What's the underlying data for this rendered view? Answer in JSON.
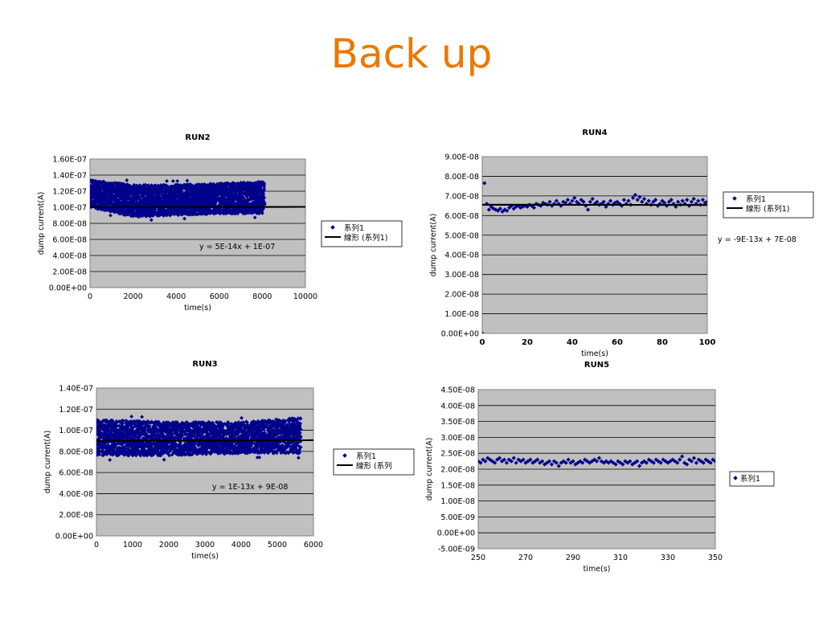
{
  "slide": {
    "title": "Back up"
  },
  "chart_data": [
    {
      "id": "run2",
      "type": "scatter",
      "title": "RUN2",
      "xlabel": "time(s)",
      "ylabel": "dump current(A)",
      "xlim": [
        0,
        10000
      ],
      "ylim": [
        0,
        1.6e-07
      ],
      "xticks": [
        "0",
        "2000",
        "4000",
        "6000",
        "8000",
        "10000"
      ],
      "yticks": [
        "0.00E+00",
        "2.00E-08",
        "4.00E-08",
        "6.00E-08",
        "8.00E-08",
        "1.00E-07",
        "1.20E-07",
        "1.40E-07",
        "1.60E-07"
      ],
      "series": [
        {
          "name": "系列1",
          "color": "#00008b",
          "marker": "diamond",
          "x_range": [
            0,
            8100
          ],
          "y_band": [
            [
              0,
              1e-07,
              1.34e-07
            ],
            [
              2000,
              8.8e-08,
              1.28e-07
            ],
            [
              4000,
              9e-08,
              1.28e-07
            ],
            [
              6000,
              9.2e-08,
              1.3e-07
            ],
            [
              8100,
              9.2e-08,
              1.32e-07
            ]
          ],
          "points_estimated": 3000
        },
        {
          "name": "線形 (系列1)",
          "type": "trendline",
          "color": "#000000",
          "slope": 5e-14,
          "intercept": 1e-07
        }
      ],
      "equation": "y = 5E-14x + 1E-07",
      "legend_labels": [
        "系列1",
        "線形 (系列1)"
      ]
    },
    {
      "id": "run4",
      "type": "scatter",
      "title": "RUN4",
      "xlabel": "time(s)",
      "ylabel": "dump current(A)",
      "xlim": [
        0,
        100
      ],
      "ylim": [
        0,
        9e-08
      ],
      "xticks": [
        "0",
        "20",
        "40",
        "60",
        "80",
        "100"
      ],
      "yticks": [
        "0.00E+00",
        "1.00E-08",
        "2.00E-08",
        "3.00E-08",
        "4.00E-08",
        "5.00E-08",
        "6.00E-08",
        "7.00E-08",
        "8.00E-08",
        "9.00E-08"
      ],
      "series": [
        {
          "name": "系列1",
          "color": "#00008b",
          "marker": "diamond",
          "points": [
            [
              0,
              0
            ],
            [
              1,
              7.65e-08
            ],
            [
              2,
              6.6e-08
            ],
            [
              3,
              6.3e-08
            ],
            [
              4,
              6.45e-08
            ],
            [
              5,
              6.35e-08
            ],
            [
              6,
              6.3e-08
            ],
            [
              7,
              6.25e-08
            ],
            [
              8,
              6.35e-08
            ],
            [
              9,
              6.2e-08
            ],
            [
              10,
              6.3e-08
            ],
            [
              11,
              6.25e-08
            ],
            [
              12,
              6.4e-08
            ],
            [
              13,
              6.5e-08
            ],
            [
              14,
              6.35e-08
            ],
            [
              15,
              6.45e-08
            ],
            [
              16,
              6.5e-08
            ],
            [
              17,
              6.4e-08
            ],
            [
              18,
              6.45e-08
            ],
            [
              19,
              6.5e-08
            ],
            [
              20,
              6.45e-08
            ],
            [
              21,
              6.55e-08
            ],
            [
              22,
              6.5e-08
            ],
            [
              23,
              6.4e-08
            ],
            [
              24,
              6.6e-08
            ],
            [
              25,
              6.55e-08
            ],
            [
              26,
              6.5e-08
            ],
            [
              27,
              6.65e-08
            ],
            [
              28,
              6.6e-08
            ],
            [
              29,
              6.55e-08
            ],
            [
              30,
              6.7e-08
            ],
            [
              31,
              6.5e-08
            ],
            [
              32,
              6.6e-08
            ],
            [
              33,
              6.75e-08
            ],
            [
              34,
              6.6e-08
            ],
            [
              35,
              6.5e-08
            ],
            [
              36,
              6.7e-08
            ],
            [
              37,
              6.65e-08
            ],
            [
              38,
              6.8e-08
            ],
            [
              39,
              6.6e-08
            ],
            [
              40,
              6.75e-08
            ],
            [
              41,
              6.9e-08
            ],
            [
              42,
              6.7e-08
            ],
            [
              43,
              6.6e-08
            ],
            [
              44,
              6.8e-08
            ],
            [
              45,
              6.7e-08
            ],
            [
              46,
              6.5e-08
            ],
            [
              47,
              6.3e-08
            ],
            [
              48,
              6.7e-08
            ],
            [
              49,
              6.85e-08
            ],
            [
              50,
              6.6e-08
            ],
            [
              51,
              6.7e-08
            ],
            [
              52,
              6.55e-08
            ],
            [
              53,
              6.6e-08
            ],
            [
              54,
              6.7e-08
            ],
            [
              55,
              6.45e-08
            ],
            [
              56,
              6.6e-08
            ],
            [
              57,
              6.75e-08
            ],
            [
              58,
              6.55e-08
            ],
            [
              59,
              6.65e-08
            ],
            [
              60,
              6.7e-08
            ],
            [
              61,
              6.6e-08
            ],
            [
              62,
              6.5e-08
            ],
            [
              63,
              6.8e-08
            ],
            [
              64,
              6.6e-08
            ],
            [
              65,
              6.75e-08
            ],
            [
              66,
              6.55e-08
            ],
            [
              67,
              6.9e-08
            ],
            [
              68,
              7.05e-08
            ],
            [
              69,
              6.8e-08
            ],
            [
              70,
              6.95e-08
            ],
            [
              71,
              6.7e-08
            ],
            [
              72,
              6.85e-08
            ],
            [
              73,
              6.6e-08
            ],
            [
              74,
              6.75e-08
            ],
            [
              75,
              6.55e-08
            ],
            [
              76,
              6.7e-08
            ],
            [
              77,
              6.8e-08
            ],
            [
              78,
              6.5e-08
            ],
            [
              79,
              6.6e-08
            ],
            [
              80,
              6.75e-08
            ],
            [
              81,
              6.65e-08
            ],
            [
              82,
              6.5e-08
            ],
            [
              83,
              6.7e-08
            ],
            [
              84,
              6.8e-08
            ],
            [
              85,
              6.6e-08
            ],
            [
              86,
              6.45e-08
            ],
            [
              87,
              6.7e-08
            ],
            [
              88,
              6.55e-08
            ],
            [
              89,
              6.75e-08
            ],
            [
              90,
              6.6e-08
            ],
            [
              91,
              6.8e-08
            ],
            [
              92,
              6.5e-08
            ],
            [
              93,
              6.7e-08
            ],
            [
              94,
              6.85e-08
            ],
            [
              95,
              6.6e-08
            ],
            [
              96,
              6.75e-08
            ],
            [
              97,
              6.55e-08
            ],
            [
              98,
              6.8e-08
            ],
            [
              99,
              6.65e-08
            ],
            [
              100,
              6.7e-08
            ]
          ]
        },
        {
          "name": "線形 (系列1)",
          "type": "trendline",
          "color": "#000000",
          "slope": -9e-13,
          "intercept": 6.55e-08
        }
      ],
      "equation": "y = -9E-13x + 7E-08",
      "legend_labels": [
        "系列1",
        "線形 (系列1)"
      ]
    },
    {
      "id": "run3",
      "type": "scatter",
      "title": "RUN3",
      "xlabel": "time(s)",
      "ylabel": "dump current(A)",
      "xlim": [
        0,
        6000
      ],
      "ylim": [
        0,
        1.4e-07
      ],
      "xticks": [
        "0",
        "1000",
        "2000",
        "3000",
        "4000",
        "5000",
        "6000"
      ],
      "yticks": [
        "0.00E+00",
        "2.00E-08",
        "4.00E-08",
        "6.00E-08",
        "8.00E-08",
        "1.00E-07",
        "1.20E-07",
        "1.40E-07"
      ],
      "series": [
        {
          "name": "系列1",
          "color": "#00008b",
          "marker": "diamond",
          "x_range": [
            0,
            5650
          ],
          "y_band": [
            [
              0,
              7.6e-08,
              1.1e-07
            ],
            [
              2000,
              7.6e-08,
              1.08e-07
            ],
            [
              4000,
              7.8e-08,
              1.08e-07
            ],
            [
              5650,
              7.8e-08,
              1.12e-07
            ]
          ],
          "points_estimated": 2800
        },
        {
          "name": "線形 (系列1)",
          "type": "trendline",
          "color": "#000000",
          "slope": 1e-13,
          "intercept": 9e-08
        }
      ],
      "equation": "y = 1E-13x + 9E-08",
      "legend_labels": [
        "系列1",
        "線形 (系列"
      ]
    },
    {
      "id": "run5",
      "type": "scatter",
      "title": "RUN5",
      "xlabel": "time(s)",
      "ylabel": "dump current(A)",
      "xlim": [
        250,
        350
      ],
      "ylim": [
        -5e-09,
        4.5e-08
      ],
      "xticks": [
        "250",
        "270",
        "290",
        "310",
        "330",
        "350"
      ],
      "yticks": [
        "-5.00E-09",
        "0.00E+00",
        "5.00E-09",
        "1.00E-08",
        "1.50E-08",
        "2.00E-08",
        "2.50E-08",
        "3.00E-08",
        "3.50E-08",
        "4.00E-08",
        "4.50E-08"
      ],
      "series": [
        {
          "name": "系列1",
          "color": "#00008b",
          "marker": "diamond",
          "points": [
            [
              250,
              2.25e-08
            ],
            [
              251,
              2.2e-08
            ],
            [
              252,
              2.3e-08
            ],
            [
              253,
              2.25e-08
            ],
            [
              254,
              2.35e-08
            ],
            [
              255,
              2.3e-08
            ],
            [
              256,
              2.25e-08
            ],
            [
              257,
              2.2e-08
            ],
            [
              258,
              2.3e-08
            ],
            [
              259,
              2.35e-08
            ],
            [
              260,
              2.25e-08
            ],
            [
              261,
              2.3e-08
            ],
            [
              262,
              2.2e-08
            ],
            [
              263,
              2.3e-08
            ],
            [
              264,
              2.25e-08
            ],
            [
              265,
              2.35e-08
            ],
            [
              266,
              2.2e-08
            ],
            [
              267,
              2.3e-08
            ],
            [
              268,
              2.25e-08
            ],
            [
              269,
              2.3e-08
            ],
            [
              270,
              2.2e-08
            ],
            [
              271,
              2.25e-08
            ],
            [
              272,
              2.3e-08
            ],
            [
              273,
              2.2e-08
            ],
            [
              274,
              2.25e-08
            ],
            [
              275,
              2.3e-08
            ],
            [
              276,
              2.2e-08
            ],
            [
              277,
              2.25e-08
            ],
            [
              278,
              2.15e-08
            ],
            [
              279,
              2.2e-08
            ],
            [
              280,
              2.25e-08
            ],
            [
              281,
              2.15e-08
            ],
            [
              282,
              2.25e-08
            ],
            [
              283,
              2.2e-08
            ],
            [
              284,
              2.1e-08
            ],
            [
              285,
              2.2e-08
            ],
            [
              286,
              2.25e-08
            ],
            [
              287,
              2.2e-08
            ],
            [
              288,
              2.3e-08
            ],
            [
              289,
              2.2e-08
            ],
            [
              290,
              2.25e-08
            ],
            [
              291,
              2.15e-08
            ],
            [
              292,
              2.2e-08
            ],
            [
              293,
              2.25e-08
            ],
            [
              294,
              2.2e-08
            ],
            [
              295,
              2.3e-08
            ],
            [
              296,
              2.25e-08
            ],
            [
              297,
              2.2e-08
            ],
            [
              298,
              2.25e-08
            ],
            [
              299,
              2.3e-08
            ],
            [
              300,
              2.25e-08
            ],
            [
              301,
              2.35e-08
            ],
            [
              302,
              2.25e-08
            ],
            [
              303,
              2.2e-08
            ],
            [
              304,
              2.25e-08
            ],
            [
              305,
              2.2e-08
            ],
            [
              306,
              2.25e-08
            ],
            [
              307,
              2.2e-08
            ],
            [
              308,
              2.15e-08
            ],
            [
              309,
              2.25e-08
            ],
            [
              310,
              2.2e-08
            ],
            [
              311,
              2.15e-08
            ],
            [
              312,
              2.25e-08
            ],
            [
              313,
              2.2e-08
            ],
            [
              314,
              2.25e-08
            ],
            [
              315,
              2.15e-08
            ],
            [
              316,
              2.2e-08
            ],
            [
              317,
              2.25e-08
            ],
            [
              318,
              2.1e-08
            ],
            [
              319,
              2.2e-08
            ],
            [
              320,
              2.25e-08
            ],
            [
              321,
              2.2e-08
            ],
            [
              322,
              2.3e-08
            ],
            [
              323,
              2.25e-08
            ],
            [
              324,
              2.2e-08
            ],
            [
              325,
              2.3e-08
            ],
            [
              326,
              2.25e-08
            ],
            [
              327,
              2.2e-08
            ],
            [
              328,
              2.3e-08
            ],
            [
              329,
              2.25e-08
            ],
            [
              330,
              2.2e-08
            ],
            [
              331,
              2.25e-08
            ],
            [
              332,
              2.3e-08
            ],
            [
              333,
              2.25e-08
            ],
            [
              334,
              2.2e-08
            ],
            [
              335,
              2.3e-08
            ],
            [
              336,
              2.4e-08
            ],
            [
              337,
              2.2e-08
            ],
            [
              338,
              2.15e-08
            ],
            [
              339,
              2.3e-08
            ],
            [
              340,
              2.25e-08
            ],
            [
              341,
              2.35e-08
            ],
            [
              342,
              2.2e-08
            ],
            [
              343,
              2.3e-08
            ],
            [
              344,
              2.25e-08
            ],
            [
              345,
              2.2e-08
            ],
            [
              346,
              2.3e-08
            ],
            [
              347,
              2.25e-08
            ],
            [
              348,
              2.2e-08
            ],
            [
              349,
              2.3e-08
            ],
            [
              350,
              2.25e-08
            ]
          ]
        }
      ],
      "equation": "",
      "legend_labels": [
        "系列1"
      ]
    }
  ]
}
